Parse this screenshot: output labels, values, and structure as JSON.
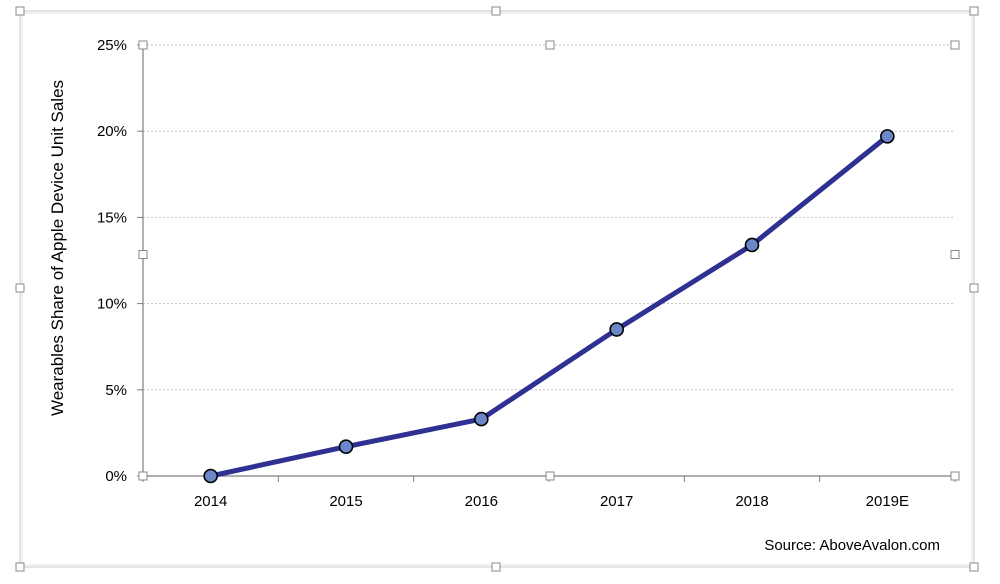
{
  "chart_data": {
    "type": "line",
    "title": "",
    "xlabel": "",
    "ylabel": "Wearables Share of Apple Device Unit Sales",
    "categories": [
      "2014",
      "2015",
      "2016",
      "2017",
      "2018",
      "2019E"
    ],
    "series": [
      {
        "values": [
          0.0,
          1.7,
          3.3,
          8.5,
          13.4,
          19.7
        ]
      }
    ],
    "ylim": [
      0,
      25
    ],
    "yticks": [
      0,
      5,
      10,
      15,
      20,
      25
    ],
    "ytick_labels": [
      "0%",
      "5%",
      "10%",
      "15%",
      "20%",
      "25%"
    ],
    "grid": "horizontal-dotted",
    "legend": "none",
    "line_color": "#2e3192",
    "marker_fill": "#6b86c9",
    "annotation": "Source: AboveAvalon.com"
  }
}
